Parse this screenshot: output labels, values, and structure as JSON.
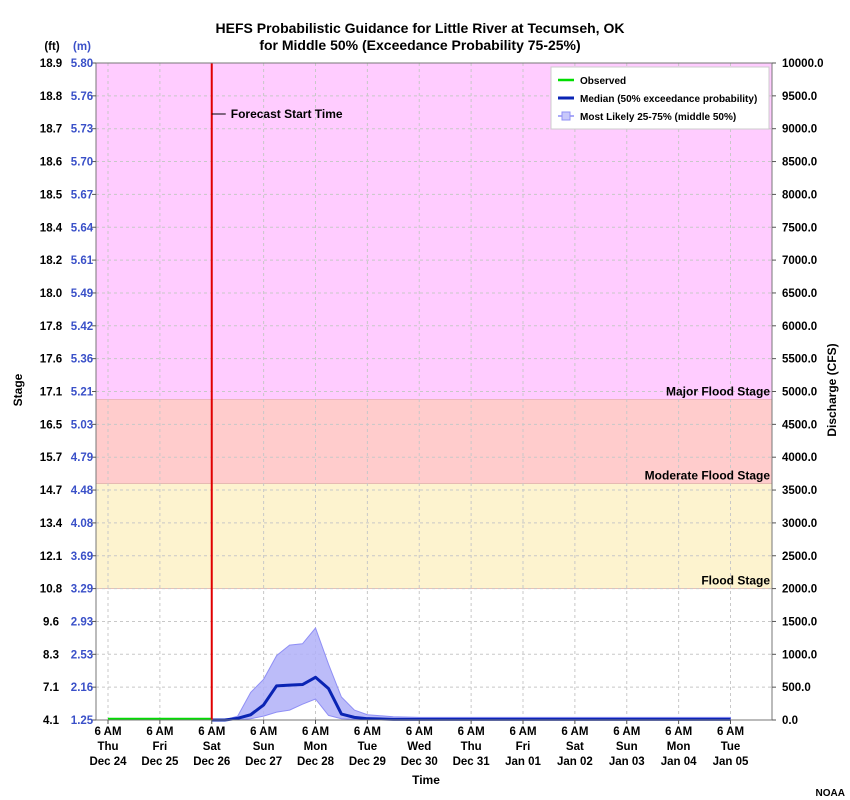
{
  "chart_data": {
    "type": "line",
    "title_line1": "HEFS Probabilistic Guidance for Little River at Tecumseh, OK",
    "title_line2": "for Middle 50% (Exceedance Probability 75-25%)",
    "ylabel_left": "Stage",
    "ylabel_right": "Discharge (CFS)",
    "xlabel": "Time",
    "unit_ft": "(ft)",
    "unit_m": "(m)",
    "discharge_range": [
      0,
      10000
    ],
    "discharge_ticks": [
      "0.0",
      "500.0",
      "1000.0",
      "1500.0",
      "2000.0",
      "2500.0",
      "3000.0",
      "3500.0",
      "4000.0",
      "4500.0",
      "5000.0",
      "5500.0",
      "6000.0",
      "6500.0",
      "7000.0",
      "7500.0",
      "8000.0",
      "8500.0",
      "9000.0",
      "9500.0",
      "10000.0"
    ],
    "stage_ft_ticks": [
      "4.1",
      "7.1",
      "8.3",
      "9.6",
      "10.8",
      "12.1",
      "13.4",
      "14.7",
      "15.7",
      "16.5",
      "17.1",
      "17.6",
      "17.8",
      "18.0",
      "18.2",
      "18.4",
      "18.5",
      "18.6",
      "18.7",
      "18.8",
      "18.9"
    ],
    "stage_m_ticks": [
      "1.25",
      "2.16",
      "2.53",
      "2.93",
      "3.29",
      "3.69",
      "4.08",
      "4.48",
      "4.79",
      "5.03",
      "5.21",
      "5.36",
      "5.42",
      "5.49",
      "5.61",
      "5.64",
      "5.67",
      "5.70",
      "5.73",
      "5.76",
      "5.80"
    ],
    "x_ticks": [
      {
        "l1": "6 AM",
        "l2": "Thu",
        "l3": "Dec 24"
      },
      {
        "l1": "6 AM",
        "l2": "Fri",
        "l3": "Dec 25"
      },
      {
        "l1": "6 AM",
        "l2": "Sat",
        "l3": "Dec 26"
      },
      {
        "l1": "6 AM",
        "l2": "Sun",
        "l3": "Dec 27"
      },
      {
        "l1": "6 AM",
        "l2": "Mon",
        "l3": "Dec 28"
      },
      {
        "l1": "6 AM",
        "l2": "Tue",
        "l3": "Dec 29"
      },
      {
        "l1": "6 AM",
        "l2": "Wed",
        "l3": "Dec 30"
      },
      {
        "l1": "6 AM",
        "l2": "Thu",
        "l3": "Dec 31"
      },
      {
        "l1": "6 AM",
        "l2": "Fri",
        "l3": "Jan 01"
      },
      {
        "l1": "6 AM",
        "l2": "Sat",
        "l3": "Jan 02"
      },
      {
        "l1": "6 AM",
        "l2": "Sun",
        "l3": "Jan 03"
      },
      {
        "l1": "6 AM",
        "l2": "Mon",
        "l3": "Jan 04"
      },
      {
        "l1": "6 AM",
        "l2": "Tue",
        "l3": "Jan 05"
      }
    ],
    "x_range_days": [
      0,
      12.8
    ],
    "flood_zones": [
      {
        "name": "Flood Stage",
        "label": "Flood Stage",
        "from": 2000,
        "to": 3600,
        "color": "#fdf3cf"
      },
      {
        "name": "Moderate Flood Stage",
        "label": "Moderate Flood Stage",
        "from": 3600,
        "to": 4880,
        "color": "#ffcccc"
      },
      {
        "name": "Major Flood Stage",
        "label": "Major Flood Stage",
        "from": 4880,
        "to": 10000,
        "color": "#ffccff"
      }
    ],
    "forecast_start_day": 2.0,
    "forecast_start_label": "Forecast Start Time",
    "series": [
      {
        "name": "Observed",
        "color": "#00dd00",
        "x": [
          0,
          2.0
        ],
        "y": [
          0,
          0
        ]
      },
      {
        "name": "Median (50% exceedance probability)",
        "color": "#0a24b4",
        "x": [
          2.0,
          2.25,
          2.5,
          2.75,
          3.0,
          3.25,
          3.5,
          3.75,
          4.0,
          4.25,
          4.5,
          4.75,
          5.0,
          5.5,
          6,
          7,
          8,
          9,
          10,
          11,
          12
        ],
        "y": [
          0,
          0,
          25,
          80,
          230,
          520,
          530,
          540,
          650,
          480,
          90,
          40,
          20,
          10,
          10,
          10,
          10,
          10,
          10,
          10,
          10
        ]
      },
      {
        "name": "Most Likely 25-75% (middle 50%)",
        "color": "#8f8ff5",
        "x": [
          2.0,
          2.25,
          2.5,
          2.75,
          3.0,
          3.25,
          3.5,
          3.75,
          4.0,
          4.25,
          4.5,
          4.75,
          5.0,
          5.5,
          6,
          7,
          8,
          9,
          10,
          11,
          12
        ],
        "upper": [
          0,
          0,
          60,
          420,
          620,
          980,
          1140,
          1160,
          1400,
          850,
          350,
          150,
          80,
          50,
          40,
          40,
          40,
          40,
          40,
          40,
          40
        ],
        "lower": [
          0,
          0,
          5,
          20,
          60,
          120,
          150,
          240,
          320,
          70,
          20,
          10,
          5,
          3,
          3,
          3,
          3,
          3,
          3,
          3,
          3
        ]
      }
    ],
    "legend": [
      "Observed",
      "Median (50% exceedance probability)",
      "Most Likely 25-75% (middle 50%)"
    ],
    "credit": "NOAA"
  }
}
